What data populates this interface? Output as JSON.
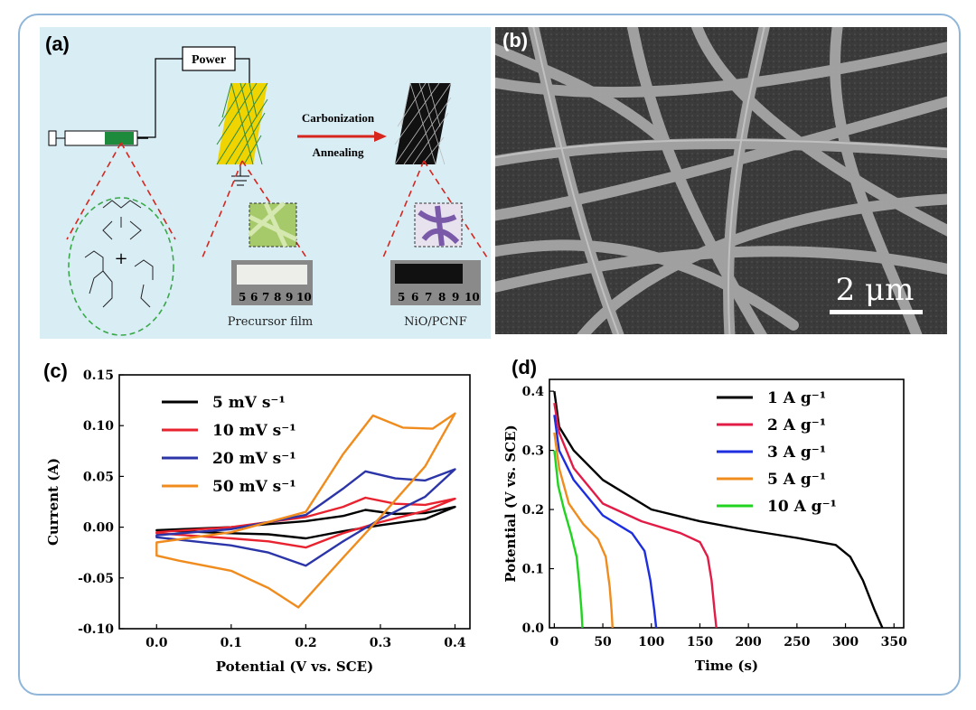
{
  "panels": {
    "a": {
      "tag": "(a)",
      "power_label": "Power",
      "process_label_1": "Carbonization",
      "process_label_2": "Annealing",
      "film_label_left": "Precursor film",
      "film_label_right": "NiO/PCNF",
      "ruler_numbers": [
        "5",
        "6",
        "7",
        "8",
        "9",
        "10"
      ]
    },
    "b": {
      "tag": "(b)",
      "scale_bar": "2 μm"
    },
    "c": {
      "tag": "(c)"
    },
    "d": {
      "tag": "(d)"
    }
  },
  "colors": {
    "black": "#000000",
    "red": "#e8232f",
    "blue": "#2b35a8",
    "orange": "#f08c1e",
    "green": "#1fd31f",
    "crimson": "#e21c46",
    "blue2": "#1d2ee0",
    "panel_a_bg": "#d9edf5"
  },
  "chart_data": [
    {
      "id": "c",
      "type": "line",
      "xlabel": "Potential (V vs. SCE)",
      "ylabel": "Current (A)",
      "xlim": [
        -0.05,
        0.42
      ],
      "ylim": [
        -0.1,
        0.15
      ],
      "xticks": [
        "0.0",
        "0.1",
        "0.2",
        "0.3",
        "0.4"
      ],
      "yticks": [
        "-0.10",
        "-0.05",
        "0.00",
        "0.05",
        "0.10",
        "0.15"
      ],
      "legend_position": "top-left",
      "series": [
        {
          "name": "5 mV s⁻¹",
          "color": "#000000",
          "upper": [
            [
              0.0,
              -0.003
            ],
            [
              0.1,
              0.0
            ],
            [
              0.2,
              0.006
            ],
            [
              0.25,
              0.011
            ],
            [
              0.28,
              0.017
            ],
            [
              0.32,
              0.013
            ],
            [
              0.36,
              0.014
            ],
            [
              0.4,
              0.02
            ]
          ],
          "lower": [
            [
              0.4,
              0.02
            ],
            [
              0.36,
              0.008
            ],
            [
              0.3,
              0.002
            ],
            [
              0.25,
              -0.004
            ],
            [
              0.2,
              -0.011
            ],
            [
              0.15,
              -0.007
            ],
            [
              0.1,
              -0.006
            ],
            [
              0.0,
              -0.003
            ]
          ]
        },
        {
          "name": "10 mV s⁻¹",
          "color": "#e8232f",
          "upper": [
            [
              0.0,
              -0.005
            ],
            [
              0.1,
              0.0
            ],
            [
              0.2,
              0.01
            ],
            [
              0.25,
              0.02
            ],
            [
              0.28,
              0.029
            ],
            [
              0.32,
              0.023
            ],
            [
              0.36,
              0.022
            ],
            [
              0.4,
              0.028
            ]
          ],
          "lower": [
            [
              0.4,
              0.028
            ],
            [
              0.36,
              0.016
            ],
            [
              0.3,
              0.005
            ],
            [
              0.25,
              -0.006
            ],
            [
              0.2,
              -0.02
            ],
            [
              0.15,
              -0.014
            ],
            [
              0.1,
              -0.011
            ],
            [
              0.0,
              -0.006
            ]
          ]
        },
        {
          "name": "20 mV s⁻¹",
          "color": "#2b35a8",
          "upper": [
            [
              0.0,
              -0.008
            ],
            [
              0.1,
              -0.002
            ],
            [
              0.2,
              0.012
            ],
            [
              0.25,
              0.038
            ],
            [
              0.28,
              0.055
            ],
            [
              0.32,
              0.048
            ],
            [
              0.36,
              0.046
            ],
            [
              0.4,
              0.057
            ]
          ],
          "lower": [
            [
              0.4,
              0.057
            ],
            [
              0.36,
              0.03
            ],
            [
              0.3,
              0.008
            ],
            [
              0.25,
              -0.014
            ],
            [
              0.2,
              -0.038
            ],
            [
              0.15,
              -0.025
            ],
            [
              0.1,
              -0.018
            ],
            [
              0.0,
              -0.01
            ]
          ]
        },
        {
          "name": "50 mV s⁻¹",
          "color": "#f08c1e",
          "upper": [
            [
              0.0,
              -0.015
            ],
            [
              0.1,
              -0.005
            ],
            [
              0.2,
              0.015
            ],
            [
              0.25,
              0.072
            ],
            [
              0.29,
              0.11
            ],
            [
              0.33,
              0.098
            ],
            [
              0.37,
              0.097
            ],
            [
              0.4,
              0.112
            ]
          ],
          "lower": [
            [
              0.4,
              0.112
            ],
            [
              0.36,
              0.06
            ],
            [
              0.3,
              0.01
            ],
            [
              0.25,
              -0.03
            ],
            [
              0.19,
              -0.079
            ],
            [
              0.15,
              -0.06
            ],
            [
              0.1,
              -0.043
            ],
            [
              0.03,
              -0.033
            ],
            [
              0.0,
              -0.028
            ]
          ]
        }
      ]
    },
    {
      "id": "d",
      "type": "line",
      "xlabel": "Time (s)",
      "ylabel": "Potential (V vs. SCE)",
      "xlim": [
        -5,
        360
      ],
      "ylim": [
        0.0,
        0.42
      ],
      "xticks": [
        "0",
        "50",
        "100",
        "150",
        "200",
        "250",
        "300",
        "350"
      ],
      "yticks": [
        "0.0",
        "0.1",
        "0.2",
        "0.3",
        "0.4"
      ],
      "legend_position": "top-right",
      "series": [
        {
          "name": "1 A g⁻¹",
          "color": "#000000",
          "points": [
            [
              0,
              0.4
            ],
            [
              5,
              0.34
            ],
            [
              20,
              0.3
            ],
            [
              50,
              0.25
            ],
            [
              100,
              0.2
            ],
            [
              150,
              0.18
            ],
            [
              200,
              0.165
            ],
            [
              250,
              0.152
            ],
            [
              290,
              0.14
            ],
            [
              305,
              0.12
            ],
            [
              318,
              0.08
            ],
            [
              330,
              0.03
            ],
            [
              338,
              0.0
            ]
          ]
        },
        {
          "name": "2 A g⁻¹",
          "color": "#e21c46",
          "points": [
            [
              0,
              0.38
            ],
            [
              5,
              0.33
            ],
            [
              20,
              0.27
            ],
            [
              50,
              0.21
            ],
            [
              90,
              0.18
            ],
            [
              130,
              0.16
            ],
            [
              150,
              0.145
            ],
            [
              158,
              0.12
            ],
            [
              162,
              0.08
            ],
            [
              165,
              0.03
            ],
            [
              167,
              0.0
            ]
          ]
        },
        {
          "name": "3 A g⁻¹",
          "color": "#1d2ee0",
          "points": [
            [
              0,
              0.36
            ],
            [
              5,
              0.3
            ],
            [
              20,
              0.25
            ],
            [
              50,
              0.19
            ],
            [
              80,
              0.16
            ],
            [
              93,
              0.13
            ],
            [
              99,
              0.08
            ],
            [
              103,
              0.03
            ],
            [
              105,
              0.0
            ]
          ]
        },
        {
          "name": "5 A g⁻¹",
          "color": "#f08c1e",
          "points": [
            [
              0,
              0.33
            ],
            [
              5,
              0.27
            ],
            [
              15,
              0.21
            ],
            [
              30,
              0.175
            ],
            [
              45,
              0.15
            ],
            [
              53,
              0.12
            ],
            [
              57,
              0.07
            ],
            [
              59,
              0.03
            ],
            [
              60,
              0.0
            ]
          ]
        },
        {
          "name": "10 A g⁻¹",
          "color": "#1fd31f",
          "points": [
            [
              0,
              0.3
            ],
            [
              4,
              0.24
            ],
            [
              10,
              0.2
            ],
            [
              17,
              0.16
            ],
            [
              23,
              0.12
            ],
            [
              26,
              0.07
            ],
            [
              28,
              0.03
            ],
            [
              29,
              0.0
            ]
          ]
        }
      ]
    }
  ]
}
